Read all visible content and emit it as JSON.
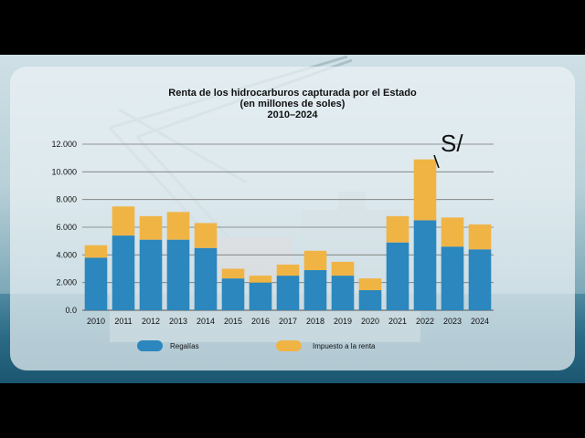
{
  "colors": {
    "regalias": "#2b87bd",
    "impuesto": "#f0b445",
    "grid": "#777777"
  },
  "chart_data": {
    "type": "bar",
    "stacked": true,
    "title_lines": [
      "Renta de los hidrocarburos capturada por el Estado",
      "(en millones de soles)",
      "2010–2024"
    ],
    "categories": [
      "2010",
      "2011",
      "2012",
      "2013",
      "2014",
      "2015",
      "2016",
      "2017",
      "2018",
      "2019",
      "2020",
      "2021",
      "2022",
      "2023",
      "2024"
    ],
    "series": [
      {
        "name": "Regalías",
        "values": [
          3800,
          5400,
          5100,
          5100,
          4500,
          2300,
          2000,
          2500,
          2900,
          2500,
          1450,
          4900,
          6500,
          4600,
          4400
        ]
      },
      {
        "name": "Impuesto a la renta",
        "values": [
          900,
          2100,
          1700,
          2000,
          1800,
          700,
          500,
          800,
          1400,
          1000,
          850,
          1900,
          4400,
          2100,
          1800
        ]
      }
    ],
    "y_ticks": [
      "0.0",
      "2.000",
      "4.000",
      "6.000",
      "8.000",
      "10.000",
      "12.000"
    ],
    "y_tick_values": [
      0,
      2000,
      4000,
      6000,
      8000,
      10000,
      12000
    ],
    "ylim": [
      0,
      12000
    ],
    "grid": true,
    "legend_position": "bottom",
    "annotation": "S/"
  }
}
